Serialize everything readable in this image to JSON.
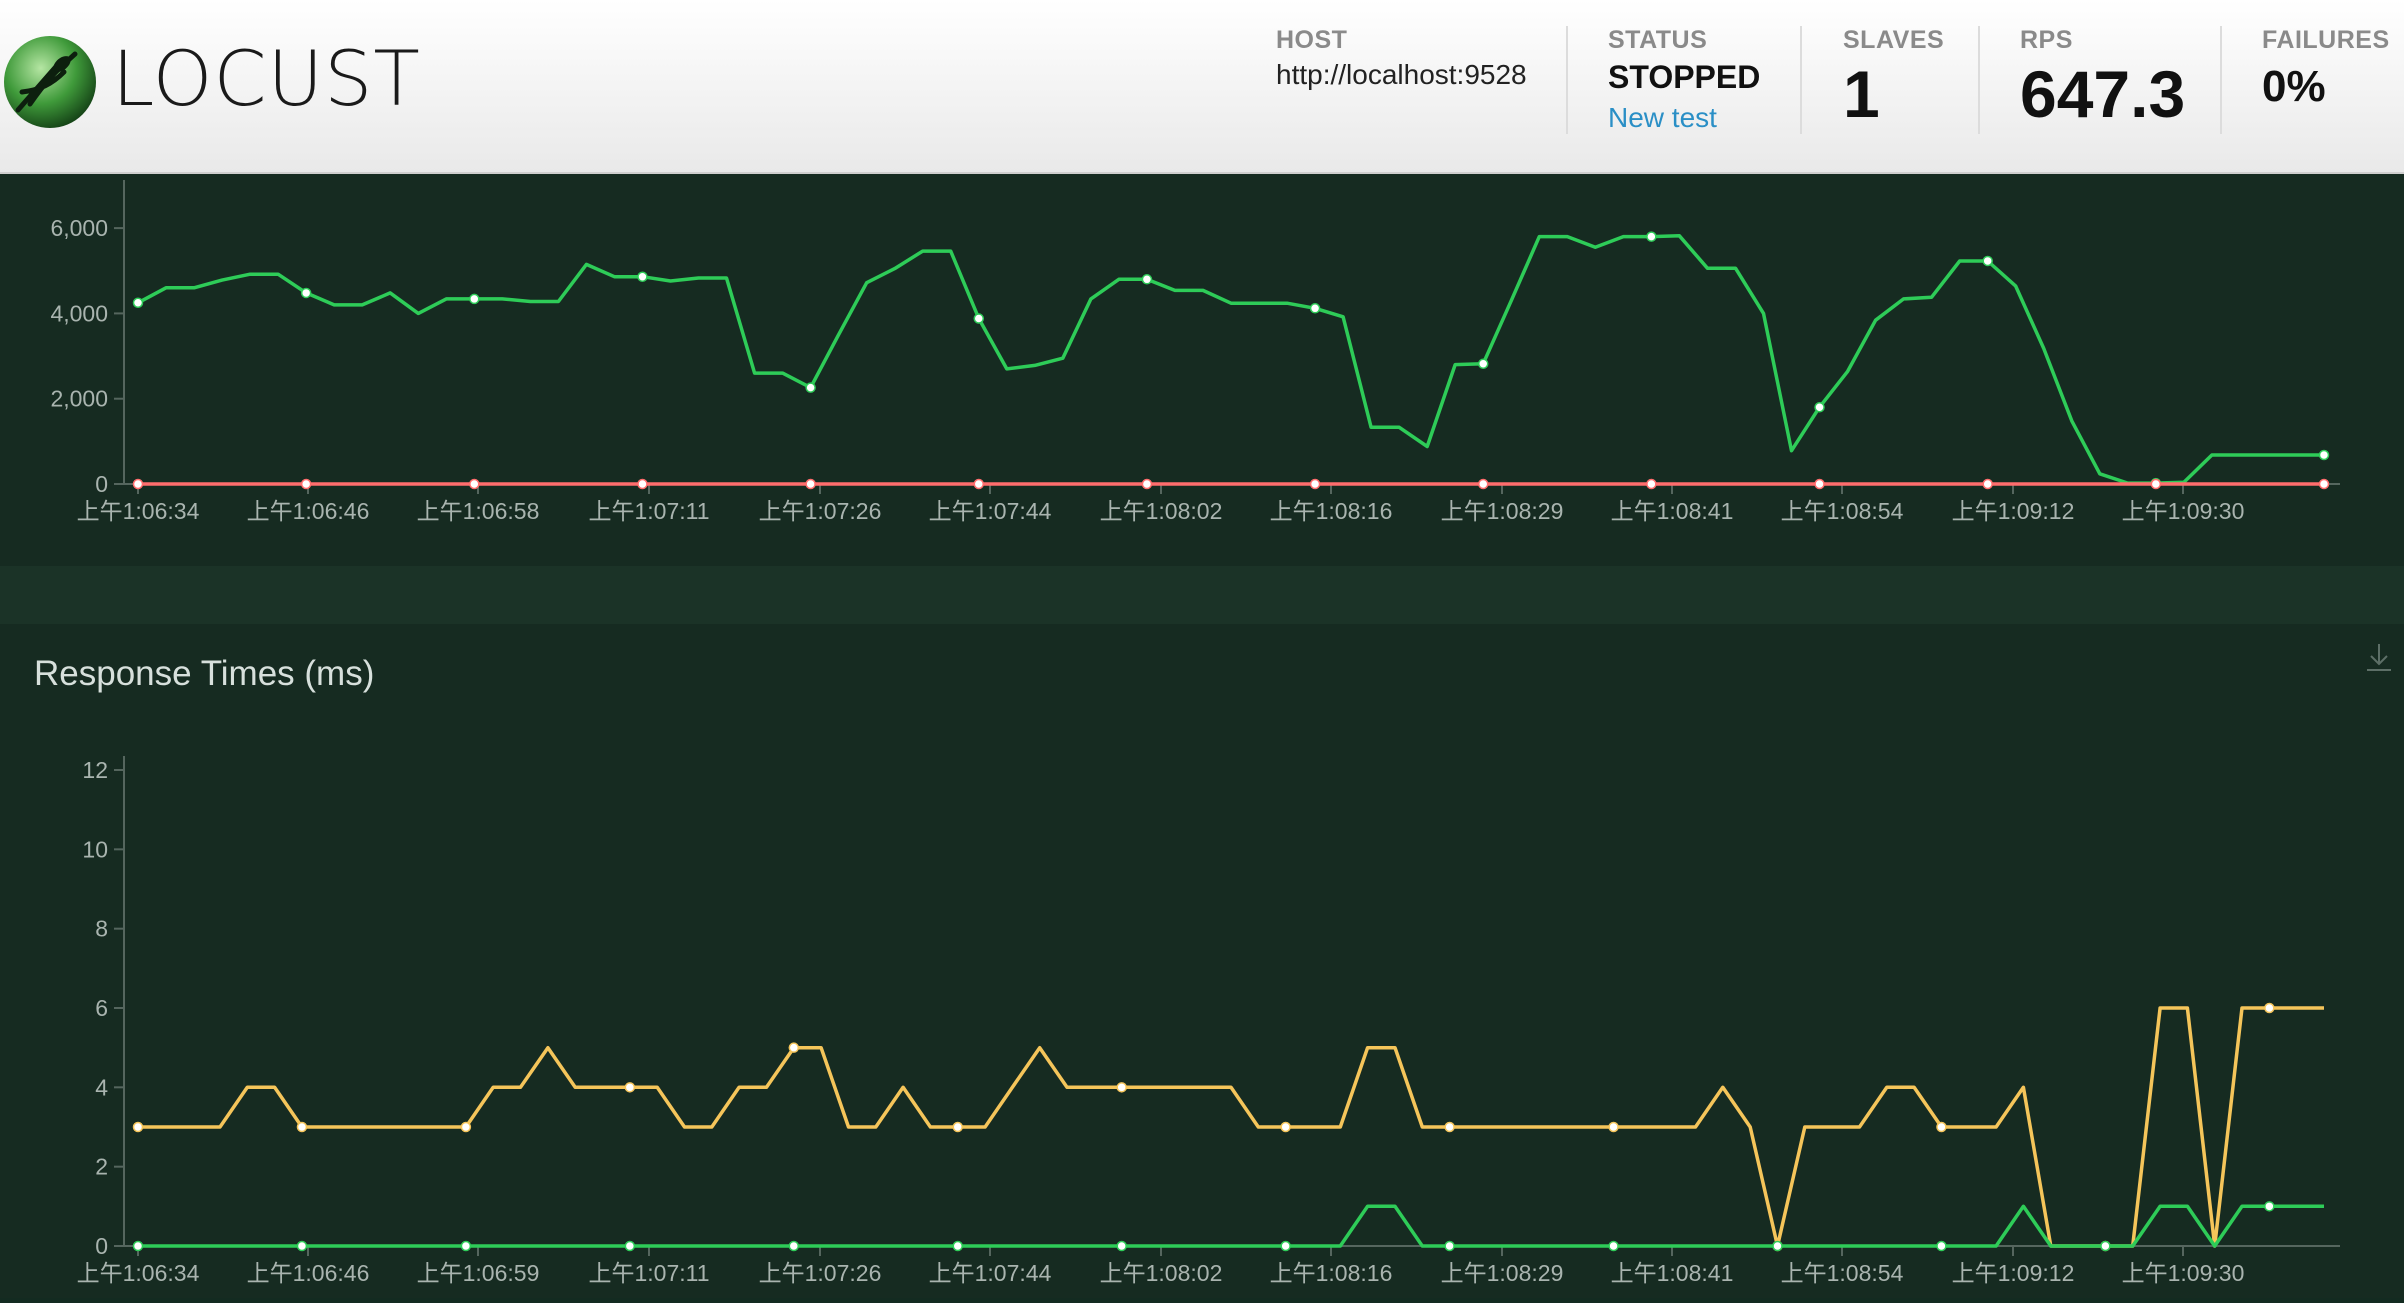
{
  "header": {
    "brand": "LOCUST",
    "host_label": "HOST",
    "host_value": "http://localhost:9528",
    "status_label": "STATUS",
    "status_value": "STOPPED",
    "new_test_label": "New test",
    "slaves_label": "SLAVES",
    "slaves_value": "1",
    "rps_label": "RPS",
    "rps_value": "647.3",
    "failures_label": "FAILURES",
    "failures_value": "0%"
  },
  "colors": {
    "rps_series": "#2ecc58",
    "failures_series": "#ff6d6d",
    "median_series": "#f5c55a",
    "p95_series": "#2ecc58",
    "axis": "#55665e",
    "tick_text": "#a9b4af"
  },
  "icons": {
    "logo": "locust-logo-icon",
    "download": "download-icon"
  },
  "chart_data": [
    {
      "type": "line",
      "title": "",
      "y_ticks": [
        "0",
        "2,000",
        "4,000",
        "6,000"
      ],
      "ylim": [
        0,
        6800
      ],
      "grid": false,
      "x_tick_labels": [
        "上午1:06:34",
        "上午1:06:46",
        "上午1:06:58",
        "上午1:07:11",
        "上午1:07:26",
        "上午1:07:44",
        "上午1:08:02",
        "上午1:08:16",
        "上午1:08:29",
        "上午1:08:41",
        "上午1:08:54",
        "上午1:09:12",
        "上午1:09:30"
      ],
      "series": [
        {
          "color": "#2ecc58",
          "values": [
            4250,
            4600,
            4600,
            4780,
            4920,
            4920,
            4480,
            4200,
            4200,
            4480,
            4000,
            4340,
            4340,
            4340,
            4280,
            4280,
            5150,
            4860,
            4860,
            4760,
            4830,
            4830,
            2600,
            2600,
            2260,
            3500,
            4720,
            5050,
            5460,
            5460,
            3880,
            2700,
            2780,
            2950,
            4340,
            4800,
            4800,
            4540,
            4540,
            4240,
            4240,
            4240,
            4120,
            3920,
            1330,
            1330,
            880,
            2800,
            2820,
            4300,
            5800,
            5800,
            5550,
            5800,
            5800,
            5820,
            5060,
            5060,
            4000,
            780,
            1800,
            2640,
            3840,
            4340,
            4380,
            5230,
            5230,
            4640,
            3180,
            1480,
            240,
            20,
            20,
            40,
            680,
            680,
            680,
            680,
            680
          ]
        },
        {
          "color": "#ff6d6d",
          "values": [
            0,
            0,
            0,
            0,
            0,
            0,
            0,
            0,
            0,
            0,
            0,
            0,
            0,
            0,
            0,
            0,
            0,
            0,
            0,
            0,
            0,
            0,
            0,
            0,
            0,
            0,
            0,
            0,
            0,
            0,
            0,
            0,
            0,
            0,
            0,
            0,
            0,
            0,
            0,
            0,
            0,
            0,
            0,
            0,
            0,
            0,
            0,
            0,
            0,
            0,
            0,
            0,
            0,
            0,
            0,
            0,
            0,
            0,
            0,
            0,
            0,
            0,
            0,
            0,
            0,
            0,
            0,
            0,
            0,
            0,
            0,
            0,
            0,
            0,
            0,
            0,
            0,
            0,
            0
          ]
        }
      ]
    },
    {
      "type": "line",
      "title": "Response Times (ms)",
      "y_ticks": [
        "0",
        "2",
        "4",
        "6",
        "8",
        "10",
        "12"
      ],
      "ylim": [
        0,
        12
      ],
      "grid": false,
      "x_tick_labels": [
        "上午1:06:34",
        "上午1:06:46",
        "上午1:06:59",
        "上午1:07:11",
        "上午1:07:26",
        "上午1:07:44",
        "上午1:08:02",
        "上午1:08:16",
        "上午1:08:29",
        "上午1:08:41",
        "上午1:08:54",
        "上午1:09:12",
        "上午1:09:30"
      ],
      "series": [
        {
          "color": "#f5c55a",
          "values": [
            3,
            3,
            3,
            3,
            4,
            4,
            3,
            3,
            3,
            3,
            3,
            3,
            3,
            4,
            4,
            5,
            4,
            4,
            4,
            4,
            3,
            3,
            4,
            4,
            5,
            5,
            3,
            3,
            4,
            3,
            3,
            3,
            4,
            5,
            4,
            4,
            4,
            4,
            4,
            4,
            4,
            3,
            3,
            3,
            3,
            5,
            5,
            3,
            3,
            3,
            3,
            3,
            3,
            3,
            3,
            3,
            3,
            3,
            4,
            3,
            0,
            3,
            3,
            3,
            4,
            4,
            3,
            3,
            3,
            4,
            0,
            0,
            0,
            0,
            6,
            6,
            0,
            6,
            6,
            6,
            6
          ]
        },
        {
          "color": "#2ecc58",
          "values": [
            0,
            0,
            0,
            0,
            0,
            0,
            0,
            0,
            0,
            0,
            0,
            0,
            0,
            0,
            0,
            0,
            0,
            0,
            0,
            0,
            0,
            0,
            0,
            0,
            0,
            0,
            0,
            0,
            0,
            0,
            0,
            0,
            0,
            0,
            0,
            0,
            0,
            0,
            0,
            0,
            0,
            0,
            0,
            0,
            0,
            1,
            1,
            0,
            0,
            0,
            0,
            0,
            0,
            0,
            0,
            0,
            0,
            0,
            0,
            0,
            0,
            0,
            0,
            0,
            0,
            0,
            0,
            0,
            0,
            1,
            0,
            0,
            0,
            0,
            1,
            1,
            0,
            1,
            1,
            1,
            1
          ]
        }
      ]
    }
  ]
}
